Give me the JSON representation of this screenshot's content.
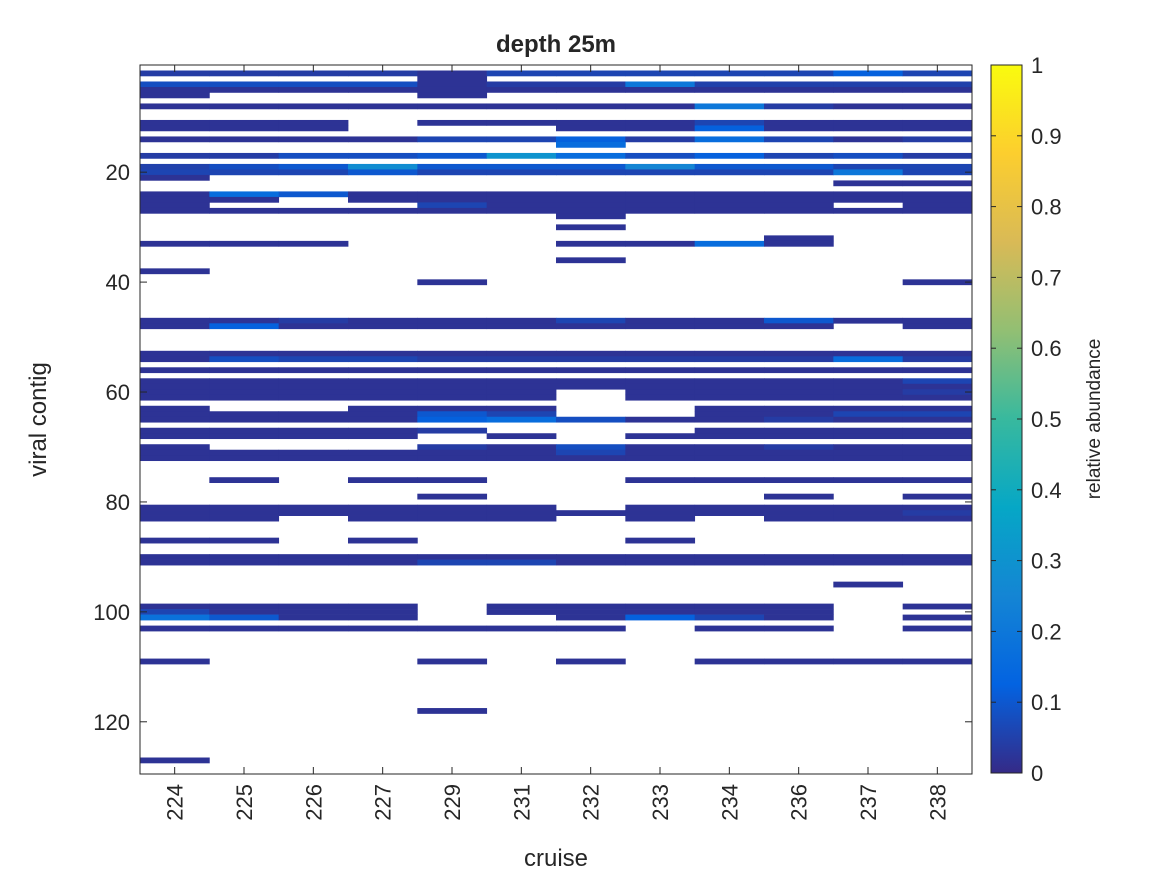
{
  "chart_data": {
    "type": "heatmap",
    "title": "depth 25m",
    "xlabel": "cruise",
    "ylabel": "viral contig",
    "x_categories": [
      "224",
      "225",
      "226",
      "227",
      "229",
      "231",
      "232",
      "233",
      "234",
      "236",
      "237",
      "238"
    ],
    "ylim": [
      0.5,
      129.5
    ],
    "y_reversed": true,
    "y_ticks": [
      20,
      40,
      60,
      80,
      100,
      120
    ],
    "y_tick_labels": [
      "20",
      "40",
      "60",
      "80",
      "100",
      "120"
    ],
    "colorbar": {
      "label": "relative abundance",
      "limits": [
        0,
        1
      ],
      "ticks": [
        0,
        0.1,
        0.2,
        0.3,
        0.4,
        0.5,
        0.6,
        0.7,
        0.8,
        0.9,
        1
      ],
      "tick_labels": [
        "0",
        "0.1",
        "0.2",
        "0.3",
        "0.4",
        "0.5",
        "0.6",
        "0.7",
        "0.8",
        "0.9",
        "1"
      ],
      "colormap": "parula",
      "color_stops": [
        "#352A87",
        "#0363E1",
        "#1485D4",
        "#06A7C6",
        "#38B99E",
        "#92BF73",
        "#D9BA56",
        "#FCCE2E",
        "#F9FB0E"
      ]
    },
    "grid": false,
    "legend": "colorbar-right",
    "rows": [
      {
        "contig": 2,
        "values": [
          0.04,
          0.04,
          0.04,
          0.04,
          0.02,
          0.06,
          0.06,
          0.06,
          0.06,
          0.06,
          0.12,
          0.06
        ]
      },
      {
        "contig": 3,
        "values": [
          null,
          null,
          null,
          null,
          0.02,
          null,
          null,
          null,
          null,
          null,
          null,
          null
        ]
      },
      {
        "contig": 4,
        "values": [
          0.08,
          0.08,
          0.08,
          0.08,
          0.02,
          0.04,
          0.04,
          0.2,
          0.05,
          0.05,
          0.05,
          0.05
        ]
      },
      {
        "contig": 5,
        "values": [
          0.02,
          0.02,
          0.02,
          0.02,
          0.02,
          0.02,
          0.02,
          0.02,
          0.02,
          0.02,
          0.02,
          0.02
        ]
      },
      {
        "contig": 6,
        "values": [
          0.02,
          null,
          null,
          null,
          0.02,
          null,
          null,
          null,
          null,
          null,
          null,
          null
        ]
      },
      {
        "contig": 8,
        "values": [
          0.02,
          0.02,
          0.02,
          0.02,
          0.02,
          0.02,
          0.02,
          0.02,
          0.2,
          0.04,
          0.02,
          0.02
        ]
      },
      {
        "contig": 11,
        "values": [
          0.02,
          0.02,
          0.02,
          null,
          0.02,
          0.02,
          0.02,
          0.02,
          0.06,
          0.02,
          0.02,
          0.02
        ]
      },
      {
        "contig": 12,
        "values": [
          0.02,
          0.02,
          0.02,
          null,
          null,
          null,
          0.02,
          0.02,
          0.12,
          0.02,
          0.02,
          0.02
        ]
      },
      {
        "contig": 14,
        "values": [
          0.02,
          0.02,
          0.02,
          0.02,
          0.06,
          0.06,
          0.12,
          0.04,
          0.16,
          0.06,
          0.02,
          0.04
        ]
      },
      {
        "contig": 15,
        "values": [
          null,
          null,
          null,
          null,
          null,
          null,
          0.16,
          null,
          null,
          null,
          null,
          null
        ]
      },
      {
        "contig": 17,
        "values": [
          0.04,
          0.04,
          0.08,
          0.08,
          0.1,
          0.3,
          0.16,
          0.08,
          0.12,
          0.06,
          0.08,
          0.04
        ]
      },
      {
        "contig": 19,
        "values": [
          0.05,
          0.08,
          0.1,
          0.28,
          0.1,
          0.1,
          0.1,
          0.25,
          0.1,
          0.1,
          0.06,
          0.06
        ]
      },
      {
        "contig": 20,
        "values": [
          0.06,
          0.06,
          0.06,
          0.1,
          0.06,
          0.06,
          0.06,
          0.06,
          0.06,
          0.06,
          0.2,
          0.06
        ]
      },
      {
        "contig": 21,
        "values": [
          0.02,
          null,
          null,
          null,
          null,
          null,
          null,
          null,
          null,
          null,
          null,
          null
        ]
      },
      {
        "contig": 22,
        "values": [
          null,
          null,
          null,
          null,
          null,
          null,
          null,
          null,
          null,
          null,
          0.02,
          0.02
        ]
      },
      {
        "contig": 24,
        "values": [
          0.02,
          0.16,
          0.1,
          0.02,
          0.02,
          0.02,
          0.02,
          0.02,
          0.02,
          0.02,
          0.02,
          0.02
        ]
      },
      {
        "contig": 25,
        "values": [
          0.02,
          0.02,
          null,
          0.02,
          0.02,
          0.02,
          0.02,
          0.02,
          0.02,
          0.02,
          0.02,
          0.02
        ]
      },
      {
        "contig": 26,
        "values": [
          0.02,
          null,
          null,
          null,
          0.06,
          0.02,
          0.02,
          0.02,
          0.02,
          0.02,
          null,
          0.02
        ]
      },
      {
        "contig": 27,
        "values": [
          0.02,
          0.02,
          0.02,
          0.02,
          0.02,
          0.02,
          0.02,
          0.02,
          0.02,
          0.02,
          0.02,
          0.02
        ]
      },
      {
        "contig": 28,
        "values": [
          null,
          null,
          null,
          null,
          null,
          null,
          0.02,
          null,
          null,
          null,
          null,
          null
        ]
      },
      {
        "contig": 30,
        "values": [
          null,
          null,
          null,
          null,
          null,
          null,
          0.02,
          null,
          null,
          null,
          null,
          null
        ]
      },
      {
        "contig": 32,
        "values": [
          null,
          null,
          null,
          null,
          null,
          null,
          null,
          null,
          null,
          0.02,
          null,
          null
        ]
      },
      {
        "contig": 33,
        "values": [
          0.02,
          0.02,
          0.02,
          null,
          null,
          null,
          0.02,
          0.02,
          0.16,
          0.02,
          null,
          null
        ]
      },
      {
        "contig": 36,
        "values": [
          null,
          null,
          null,
          null,
          null,
          null,
          0.02,
          null,
          null,
          null,
          null,
          null
        ]
      },
      {
        "contig": 38,
        "values": [
          0.02,
          null,
          null,
          null,
          null,
          null,
          null,
          null,
          null,
          null,
          null,
          null
        ]
      },
      {
        "contig": 40,
        "values": [
          null,
          null,
          null,
          null,
          0.02,
          null,
          null,
          null,
          null,
          null,
          null,
          0.02
        ]
      },
      {
        "contig": 47,
        "values": [
          0.02,
          0.02,
          0.04,
          0.02,
          0.02,
          0.02,
          0.06,
          0.02,
          0.02,
          0.1,
          0.02,
          0.02
        ]
      },
      {
        "contig": 48,
        "values": [
          0.02,
          0.12,
          0.02,
          0.02,
          0.02,
          0.02,
          0.02,
          0.02,
          0.02,
          0.02,
          null,
          0.02
        ]
      },
      {
        "contig": 53,
        "values": [
          0.02,
          0.02,
          0.02,
          0.02,
          0.02,
          0.02,
          0.02,
          0.02,
          0.02,
          0.02,
          0.02,
          0.02
        ]
      },
      {
        "contig": 54,
        "values": [
          0.02,
          0.08,
          0.06,
          0.06,
          0.04,
          0.04,
          0.04,
          0.04,
          0.04,
          0.04,
          0.16,
          0.04
        ]
      },
      {
        "contig": 56,
        "values": [
          0.02,
          0.02,
          0.02,
          0.02,
          0.02,
          0.02,
          0.02,
          0.02,
          0.02,
          0.02,
          0.02,
          0.02
        ]
      },
      {
        "contig": 58,
        "values": [
          0.02,
          0.02,
          0.02,
          0.02,
          0.02,
          0.02,
          0.02,
          0.02,
          0.02,
          0.02,
          0.02,
          0.06
        ]
      },
      {
        "contig": 59,
        "values": [
          0.02,
          0.02,
          0.02,
          0.02,
          0.02,
          0.02,
          0.02,
          0.02,
          0.02,
          0.02,
          0.02,
          0.02
        ]
      },
      {
        "contig": 60,
        "values": [
          0.02,
          0.02,
          0.02,
          0.02,
          0.02,
          0.02,
          null,
          0.02,
          0.02,
          0.02,
          0.02,
          0.04
        ]
      },
      {
        "contig": 61,
        "values": [
          0.02,
          0.02,
          0.02,
          0.02,
          0.02,
          0.02,
          null,
          0.02,
          0.02,
          0.02,
          0.02,
          0.02
        ]
      },
      {
        "contig": 63,
        "values": [
          0.02,
          null,
          null,
          0.02,
          0.02,
          0.02,
          null,
          null,
          0.02,
          0.02,
          0.02,
          0.02
        ]
      },
      {
        "contig": 64,
        "values": [
          0.02,
          0.02,
          0.02,
          0.02,
          0.1,
          0.06,
          null,
          null,
          0.02,
          0.02,
          0.06,
          0.06
        ]
      },
      {
        "contig": 65,
        "values": [
          0.02,
          0.02,
          0.02,
          0.02,
          0.12,
          0.16,
          0.08,
          0.02,
          0.02,
          0.04,
          0.02,
          0.02
        ]
      },
      {
        "contig": 67,
        "values": [
          0.02,
          0.02,
          0.02,
          0.02,
          0.04,
          null,
          null,
          null,
          0.02,
          0.02,
          0.02,
          0.02
        ]
      },
      {
        "contig": 68,
        "values": [
          0.02,
          0.02,
          0.02,
          0.02,
          null,
          0.02,
          null,
          0.02,
          0.02,
          0.02,
          0.02,
          0.02
        ]
      },
      {
        "contig": 70,
        "values": [
          0.02,
          null,
          null,
          null,
          0.04,
          0.02,
          0.08,
          0.02,
          0.02,
          0.04,
          0.02,
          0.02
        ]
      },
      {
        "contig": 71,
        "values": [
          0.02,
          0.02,
          0.02,
          0.02,
          0.02,
          0.02,
          0.06,
          0.02,
          0.02,
          0.02,
          0.02,
          0.02
        ]
      },
      {
        "contig": 72,
        "values": [
          0.02,
          0.02,
          0.02,
          0.02,
          0.02,
          0.02,
          0.02,
          0.02,
          0.02,
          0.02,
          0.02,
          0.02
        ]
      },
      {
        "contig": 76,
        "values": [
          null,
          0.02,
          null,
          0.02,
          0.02,
          null,
          null,
          0.02,
          0.02,
          0.02,
          0.02,
          0.02
        ]
      },
      {
        "contig": 79,
        "values": [
          null,
          null,
          null,
          null,
          0.02,
          null,
          null,
          null,
          null,
          0.02,
          null,
          0.02
        ]
      },
      {
        "contig": 81,
        "values": [
          0.02,
          0.02,
          0.02,
          0.02,
          0.02,
          0.02,
          null,
          0.02,
          0.02,
          0.02,
          0.02,
          0.02
        ]
      },
      {
        "contig": 82,
        "values": [
          0.02,
          0.02,
          0.02,
          0.02,
          0.02,
          0.02,
          0.02,
          0.02,
          0.02,
          0.02,
          0.02,
          0.04
        ]
      },
      {
        "contig": 83,
        "values": [
          0.02,
          0.02,
          null,
          0.02,
          0.02,
          0.02,
          null,
          0.02,
          null,
          0.02,
          0.02,
          0.02
        ]
      },
      {
        "contig": 87,
        "values": [
          0.02,
          0.02,
          null,
          0.02,
          null,
          null,
          null,
          0.02,
          null,
          null,
          null,
          null
        ]
      },
      {
        "contig": 90,
        "values": [
          0.02,
          0.02,
          0.02,
          0.02,
          0.02,
          0.02,
          0.02,
          0.02,
          0.02,
          0.02,
          0.02,
          0.02
        ]
      },
      {
        "contig": 91,
        "values": [
          0.02,
          0.02,
          0.02,
          0.02,
          0.06,
          0.06,
          0.02,
          0.02,
          0.02,
          0.02,
          0.02,
          0.02
        ]
      },
      {
        "contig": 95,
        "values": [
          null,
          null,
          null,
          null,
          null,
          null,
          null,
          null,
          null,
          null,
          0.02,
          null
        ]
      },
      {
        "contig": 99,
        "values": [
          0.02,
          0.02,
          0.02,
          0.02,
          null,
          0.02,
          0.02,
          0.02,
          0.02,
          0.02,
          null,
          0.02
        ]
      },
      {
        "contig": 100,
        "values": [
          0.06,
          0.02,
          0.02,
          0.02,
          null,
          0.02,
          0.02,
          0.02,
          0.02,
          0.02,
          null,
          null
        ]
      },
      {
        "contig": 101,
        "values": [
          0.18,
          0.1,
          0.02,
          0.02,
          null,
          null,
          0.02,
          0.12,
          0.06,
          0.02,
          null,
          0.02
        ]
      },
      {
        "contig": 103,
        "values": [
          0.02,
          0.02,
          0.02,
          0.02,
          0.02,
          0.02,
          0.02,
          null,
          0.02,
          0.02,
          null,
          0.02
        ]
      },
      {
        "contig": 109,
        "values": [
          0.02,
          null,
          null,
          null,
          0.02,
          null,
          0.02,
          null,
          0.02,
          0.02,
          0.02,
          0.02
        ]
      },
      {
        "contig": 118,
        "values": [
          null,
          null,
          null,
          null,
          0.02,
          null,
          null,
          null,
          null,
          null,
          null,
          null
        ]
      },
      {
        "contig": 127,
        "values": [
          0.02,
          null,
          null,
          null,
          null,
          null,
          null,
          null,
          null,
          null,
          null,
          null
        ]
      }
    ]
  }
}
